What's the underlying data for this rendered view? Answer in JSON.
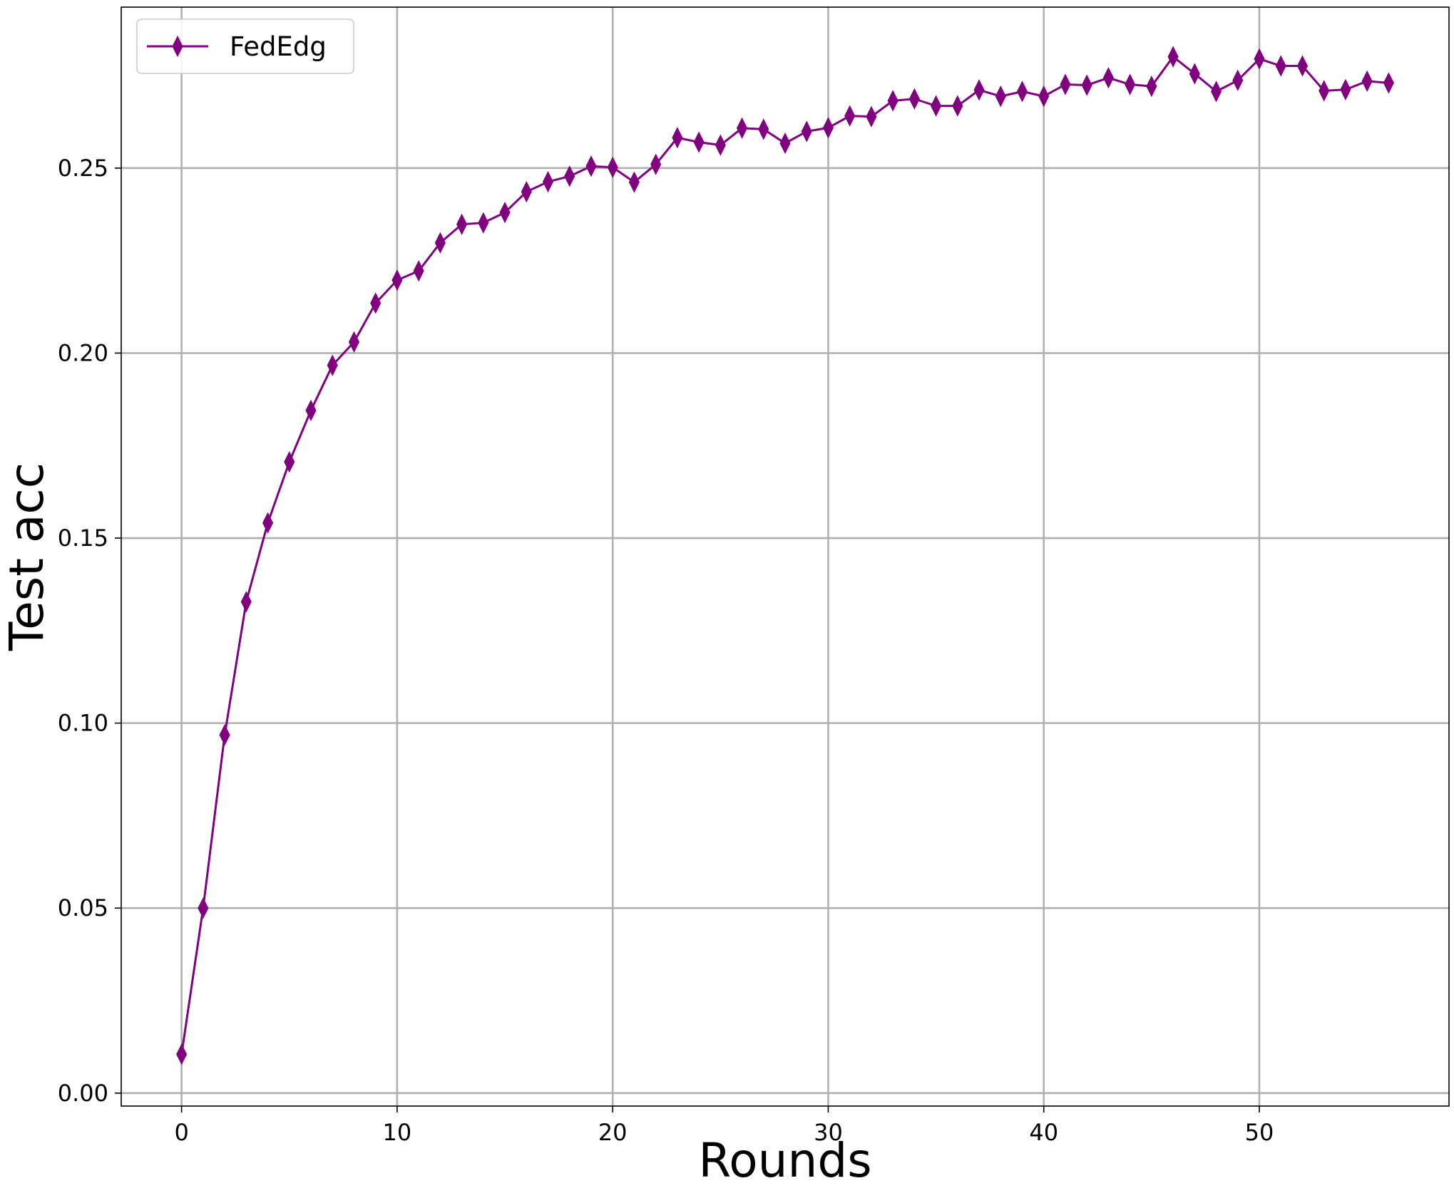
{
  "chart_data": {
    "type": "line",
    "xlabel": "Rounds",
    "ylabel": "Test acc",
    "xlim": [
      -2.8,
      58.8
    ],
    "ylim": [
      -0.0035,
      0.2935
    ],
    "grid": true,
    "legend_position": "top-left",
    "x_ticks": [
      {
        "value": 0,
        "label": "0"
      },
      {
        "value": 10,
        "label": "10"
      },
      {
        "value": 20,
        "label": "20"
      },
      {
        "value": 30,
        "label": "30"
      },
      {
        "value": 40,
        "label": "40"
      },
      {
        "value": 50,
        "label": "50"
      }
    ],
    "y_ticks": [
      {
        "value": 0.0,
        "label": "0.00"
      },
      {
        "value": 0.05,
        "label": "0.05"
      },
      {
        "value": 0.1,
        "label": "0.10"
      },
      {
        "value": 0.15,
        "label": "0.15"
      },
      {
        "value": 0.2,
        "label": "0.20"
      },
      {
        "value": 0.25,
        "label": "0.25"
      }
    ],
    "x": [
      0,
      1,
      2,
      3,
      4,
      5,
      6,
      7,
      8,
      9,
      10,
      11,
      12,
      13,
      14,
      15,
      16,
      17,
      18,
      19,
      20,
      21,
      22,
      23,
      24,
      25,
      26,
      27,
      28,
      29,
      30,
      31,
      32,
      33,
      34,
      35,
      36,
      37,
      38,
      39,
      40,
      41,
      42,
      43,
      44,
      45,
      46,
      47,
      48,
      49,
      50,
      51,
      52,
      53,
      54,
      55,
      56
    ],
    "series": [
      {
        "name": "FedEdg",
        "color": "#800080",
        "marker": "thin-diamond",
        "values": [
          0.0105,
          0.05,
          0.0968,
          0.1328,
          0.1541,
          0.1706,
          0.1845,
          0.1967,
          0.203,
          0.2135,
          0.2197,
          0.2222,
          0.2298,
          0.2348,
          0.2352,
          0.238,
          0.2436,
          0.2463,
          0.2478,
          0.2505,
          0.2502,
          0.2462,
          0.251,
          0.2582,
          0.257,
          0.2562,
          0.2608,
          0.2605,
          0.2567,
          0.2599,
          0.2609,
          0.2641,
          0.2639,
          0.2682,
          0.2687,
          0.2668,
          0.2668,
          0.2711,
          0.2694,
          0.2707,
          0.2694,
          0.2726,
          0.2724,
          0.2744,
          0.2726,
          0.2721,
          0.2801,
          0.2755,
          0.2707,
          0.2737,
          0.2795,
          0.2776,
          0.2776,
          0.2709,
          0.2712,
          0.2735,
          0.273
        ]
      }
    ]
  }
}
